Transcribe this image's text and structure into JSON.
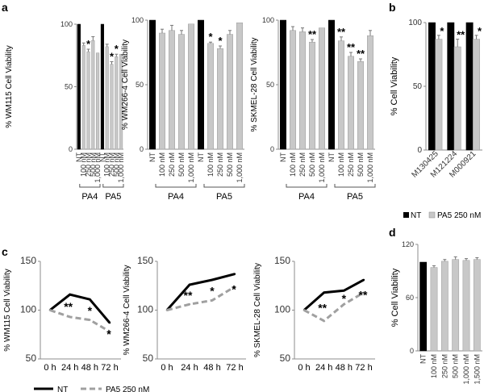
{
  "panel_letters": [
    "a",
    "b",
    "c",
    "d"
  ],
  "significance": [
    "*",
    "**"
  ],
  "chart_data": [
    {
      "id": "a1",
      "type": "bar",
      "panel": "a",
      "ylabel": "% WM115 Cell Viability",
      "ylim": [
        0,
        100
      ],
      "yticks": [
        0,
        50,
        100
      ],
      "categories": [
        "NT",
        "100 nM",
        "250 nM",
        "500 nM",
        "1,000 nM",
        "NT",
        "100 nM",
        "250 nM",
        "500 nM",
        "1,000 nM"
      ],
      "values": [
        100,
        83,
        78,
        87,
        77,
        100,
        82,
        68,
        74,
        76
      ],
      "errors": [
        0,
        2,
        2,
        3,
        0,
        0,
        2,
        2,
        2,
        0
      ],
      "significance": [
        "",
        "",
        "*",
        "",
        "",
        "",
        "",
        "*",
        "*",
        ""
      ],
      "groups": [
        {
          "label": "PA4",
          "from": 0,
          "to": 4
        },
        {
          "label": "PA5",
          "from": 5,
          "to": 9
        }
      ]
    },
    {
      "id": "a2",
      "type": "bar",
      "panel": "a",
      "ylabel": "% WM266-4 Cell Viability",
      "ylim": [
        0,
        100
      ],
      "yticks": [
        0,
        50,
        100
      ],
      "categories": [
        "NT",
        "100 nM",
        "250 nM",
        "500 nM",
        "1,000 nM",
        "NT",
        "100 nM",
        "250 nM",
        "500 nM",
        "1,000 nM"
      ],
      "values": [
        100,
        90,
        92,
        89,
        97,
        100,
        82,
        78,
        89,
        98
      ],
      "errors": [
        0,
        3,
        4,
        3,
        0,
        0,
        1,
        2,
        3,
        0
      ],
      "significance": [
        "",
        "",
        "",
        "",
        "",
        "",
        "*",
        "*",
        "",
        ""
      ],
      "groups": [
        {
          "label": "PA4",
          "from": 0,
          "to": 4
        },
        {
          "label": "PA5",
          "from": 5,
          "to": 9
        }
      ]
    },
    {
      "id": "a3",
      "type": "bar",
      "panel": "a",
      "ylabel": "% SKMEL-28 Cell Viability",
      "ylim": [
        0,
        100
      ],
      "yticks": [
        0,
        50,
        100
      ],
      "categories": [
        "NT",
        "100 nM",
        "250 nM",
        "500 nM",
        "1,000 nM",
        "NT",
        "100 nM",
        "250 nM",
        "500 nM",
        "1,000 nM"
      ],
      "values": [
        100,
        92,
        91,
        83,
        94,
        100,
        84,
        72,
        68,
        88
      ],
      "errors": [
        0,
        3,
        3,
        2,
        0,
        0,
        3,
        3,
        2,
        4
      ],
      "significance": [
        "",
        "",
        "",
        "**",
        "",
        "",
        "**",
        "**",
        "**",
        ""
      ],
      "groups": [
        {
          "label": "PA4",
          "from": 0,
          "to": 4
        },
        {
          "label": "PA5",
          "from": 5,
          "to": 9
        }
      ]
    },
    {
      "id": "b",
      "type": "bar",
      "panel": "b",
      "ylabel": "% Cell Viability",
      "ylim": [
        0,
        100
      ],
      "yticks": [
        0,
        50,
        100
      ],
      "categories": [
        "M130425",
        "M121224",
        "M000921"
      ],
      "series": [
        {
          "name": "NT",
          "values": [
            100,
            100,
            100
          ],
          "errors": [
            0,
            0,
            0
          ],
          "significance": [
            "",
            "",
            ""
          ]
        },
        {
          "name": "PA5 250 nM",
          "values": [
            87,
            81,
            87
          ],
          "errors": [
            3,
            6,
            3
          ],
          "significance": [
            "*",
            "**",
            "*"
          ]
        }
      ],
      "legend": "bottom"
    },
    {
      "id": "c1",
      "type": "line",
      "panel": "c",
      "ylabel": "% WM115 Cell Viability",
      "ylim": [
        50,
        150
      ],
      "yticks": [
        50,
        100,
        150
      ],
      "x": [
        "0 h",
        "24 h",
        "48 h",
        "72 h"
      ],
      "series": [
        {
          "name": "NT",
          "values": [
            100,
            116,
            111,
            87
          ]
        },
        {
          "name": "PA5 250 nM",
          "values": [
            100,
            93,
            90,
            78
          ]
        }
      ],
      "significance": [
        "",
        "**",
        "*",
        "*"
      ]
    },
    {
      "id": "c2",
      "type": "line",
      "panel": "c",
      "ylabel": "% WM266-4 Cell Viability",
      "ylim": [
        50,
        150
      ],
      "yticks": [
        50,
        100,
        150
      ],
      "x": [
        "0 h",
        "24 h",
        "48 h",
        "72 h"
      ],
      "series": [
        {
          "name": "NT",
          "values": [
            100,
            126,
            131,
            137
          ]
        },
        {
          "name": "PA5 250 nM",
          "values": [
            100,
            106,
            110,
            124
          ]
        }
      ],
      "significance": [
        "",
        "**",
        "*",
        "*"
      ]
    },
    {
      "id": "c3",
      "type": "line",
      "panel": "c",
      "ylabel": "% SKMEL-28 Cell Viability",
      "ylim": [
        50,
        150
      ],
      "yticks": [
        50,
        100,
        150
      ],
      "x": [
        "0 h",
        "24 h",
        "48 h",
        "72 h"
      ],
      "series": [
        {
          "name": "NT",
          "values": [
            100,
            118,
            120,
            131
          ]
        },
        {
          "name": "PA5 250 nM",
          "values": [
            100,
            89,
            106,
            118
          ]
        }
      ],
      "significance": [
        "",
        "**",
        "*",
        "**"
      ],
      "legend": "bottom"
    },
    {
      "id": "d",
      "type": "bar",
      "panel": "d",
      "ylabel": "% Cell Viability",
      "ylim": [
        0,
        120
      ],
      "yticks": [
        0,
        60,
        120
      ],
      "categories": [
        "NT",
        "100 nM",
        "250 nM",
        "500 nM",
        "1,000 nM",
        "1,500 nM"
      ],
      "values": [
        100,
        94,
        101,
        103,
        102,
        103
      ],
      "errors": [
        0,
        2,
        2,
        3,
        2,
        2
      ]
    }
  ],
  "colors": {
    "nt": "#000000",
    "treated": "#c8c8c8",
    "dashed_line": "#a0a0a0",
    "axis": "#8c8c8c"
  }
}
